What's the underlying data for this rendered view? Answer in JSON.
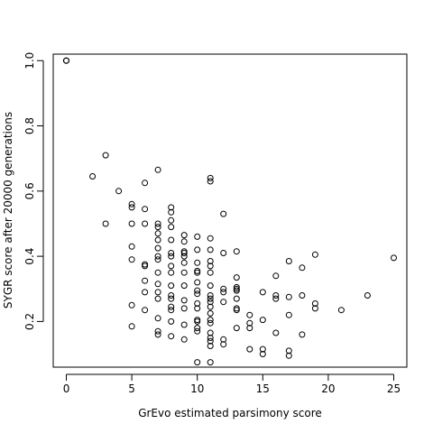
{
  "chart_data": {
    "type": "scatter",
    "title": "",
    "xlabel": "GrEvo estimated parsimony score",
    "ylabel": "SYGR score after 20000 generations",
    "xlim": [
      -1,
      26
    ],
    "ylim": [
      0.06,
      1.02
    ],
    "xticks": [
      "0",
      "5",
      "10",
      "15",
      "20",
      "25"
    ],
    "xtick_values": [
      0,
      5,
      10,
      15,
      20,
      25
    ],
    "yticks": [
      "0.2",
      "0.4",
      "0.6",
      "0.8",
      "1.0"
    ],
    "ytick_values": [
      0.2,
      0.4,
      0.6,
      0.8,
      1.0
    ],
    "grid": false,
    "marker": "open-circle",
    "color": "#000000",
    "points": [
      [
        0,
        1.0
      ],
      [
        0,
        1.0
      ],
      [
        0,
        1.0
      ],
      [
        2,
        0.645
      ],
      [
        3,
        0.71
      ],
      [
        3,
        0.5
      ],
      [
        4,
        0.6
      ],
      [
        5,
        0.56
      ],
      [
        5,
        0.55
      ],
      [
        5,
        0.5
      ],
      [
        5,
        0.43
      ],
      [
        5,
        0.39
      ],
      [
        5,
        0.25
      ],
      [
        5,
        0.185
      ],
      [
        6,
        0.625
      ],
      [
        6,
        0.545
      ],
      [
        6,
        0.5
      ],
      [
        6,
        0.375
      ],
      [
        6,
        0.37
      ],
      [
        6,
        0.325
      ],
      [
        6,
        0.29
      ],
      [
        6,
        0.235
      ],
      [
        7,
        0.665
      ],
      [
        7,
        0.5
      ],
      [
        7,
        0.49
      ],
      [
        7,
        0.47
      ],
      [
        7,
        0.45
      ],
      [
        7,
        0.425
      ],
      [
        7,
        0.4
      ],
      [
        7,
        0.39
      ],
      [
        7,
        0.35
      ],
      [
        7,
        0.315
      ],
      [
        7,
        0.29
      ],
      [
        7,
        0.27
      ],
      [
        7,
        0.21
      ],
      [
        7,
        0.17
      ],
      [
        7,
        0.16
      ],
      [
        8,
        0.55
      ],
      [
        8,
        0.535
      ],
      [
        8,
        0.51
      ],
      [
        8,
        0.49
      ],
      [
        8,
        0.45
      ],
      [
        8,
        0.41
      ],
      [
        8,
        0.4
      ],
      [
        8,
        0.37
      ],
      [
        8,
        0.35
      ],
      [
        8,
        0.31
      ],
      [
        8,
        0.28
      ],
      [
        8,
        0.27
      ],
      [
        8,
        0.245
      ],
      [
        8,
        0.235
      ],
      [
        8,
        0.2
      ],
      [
        8,
        0.155
      ],
      [
        9,
        0.465
      ],
      [
        9,
        0.445
      ],
      [
        9,
        0.415
      ],
      [
        9,
        0.41
      ],
      [
        9,
        0.4
      ],
      [
        9,
        0.38
      ],
      [
        9,
        0.35
      ],
      [
        9,
        0.31
      ],
      [
        9,
        0.265
      ],
      [
        9,
        0.24
      ],
      [
        9,
        0.19
      ],
      [
        9,
        0.145
      ],
      [
        10,
        0.46
      ],
      [
        10,
        0.42
      ],
      [
        10,
        0.38
      ],
      [
        10,
        0.355
      ],
      [
        10,
        0.35
      ],
      [
        10,
        0.32
      ],
      [
        10,
        0.295
      ],
      [
        10,
        0.285
      ],
      [
        10,
        0.255
      ],
      [
        10,
        0.24
      ],
      [
        10,
        0.205
      ],
      [
        10,
        0.2
      ],
      [
        10,
        0.18
      ],
      [
        10,
        0.17
      ],
      [
        10,
        0.075
      ],
      [
        11,
        0.64
      ],
      [
        11,
        0.63
      ],
      [
        11,
        0.455
      ],
      [
        11,
        0.42
      ],
      [
        11,
        0.385
      ],
      [
        11,
        0.37
      ],
      [
        11,
        0.35
      ],
      [
        11,
        0.31
      ],
      [
        11,
        0.28
      ],
      [
        11,
        0.27
      ],
      [
        11,
        0.26
      ],
      [
        11,
        0.245
      ],
      [
        11,
        0.225
      ],
      [
        11,
        0.205
      ],
      [
        11,
        0.195
      ],
      [
        11,
        0.165
      ],
      [
        11,
        0.15
      ],
      [
        11,
        0.14
      ],
      [
        11,
        0.125
      ],
      [
        11,
        0.075
      ],
      [
        12,
        0.53
      ],
      [
        12,
        0.41
      ],
      [
        12,
        0.3
      ],
      [
        12,
        0.29
      ],
      [
        12,
        0.26
      ],
      [
        12,
        0.145
      ],
      [
        12,
        0.13
      ],
      [
        13,
        0.415
      ],
      [
        13,
        0.335
      ],
      [
        13,
        0.305
      ],
      [
        13,
        0.3
      ],
      [
        13,
        0.295
      ],
      [
        13,
        0.27
      ],
      [
        13,
        0.24
      ],
      [
        13,
        0.235
      ],
      [
        13,
        0.18
      ],
      [
        14,
        0.22
      ],
      [
        14,
        0.195
      ],
      [
        14,
        0.18
      ],
      [
        14,
        0.115
      ],
      [
        15,
        0.29
      ],
      [
        15,
        0.205
      ],
      [
        15,
        0.115
      ],
      [
        15,
        0.1
      ],
      [
        16,
        0.34
      ],
      [
        16,
        0.28
      ],
      [
        16,
        0.27
      ],
      [
        16,
        0.165
      ],
      [
        17,
        0.385
      ],
      [
        17,
        0.275
      ],
      [
        17,
        0.22
      ],
      [
        17,
        0.11
      ],
      [
        17,
        0.095
      ],
      [
        18,
        0.365
      ],
      [
        18,
        0.28
      ],
      [
        18,
        0.16
      ],
      [
        19,
        0.405
      ],
      [
        19,
        0.255
      ],
      [
        19,
        0.24
      ],
      [
        21,
        0.235
      ],
      [
        23,
        0.28
      ],
      [
        25,
        0.395
      ]
    ]
  }
}
